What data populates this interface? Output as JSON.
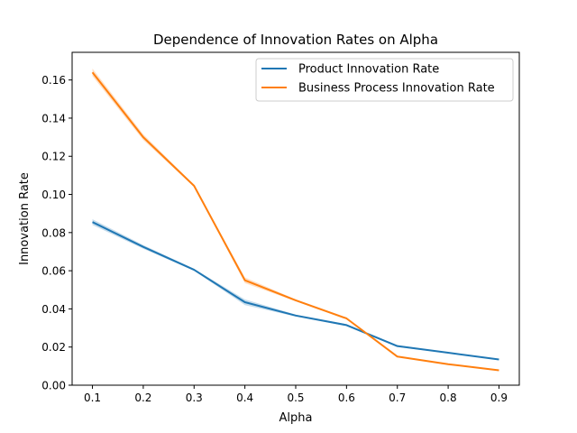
{
  "chart_data": {
    "type": "line",
    "title": "Dependence of Innovation Rates on Alpha",
    "xlabel": "Alpha",
    "ylabel": "Innovation Rate",
    "x": [
      0.1,
      0.2,
      0.3,
      0.4,
      0.5,
      0.6,
      0.7,
      0.8,
      0.9
    ],
    "xticks": [
      "0.1",
      "0.2",
      "0.3",
      "0.4",
      "0.5",
      "0.6",
      "0.7",
      "0.8",
      "0.9"
    ],
    "yticks": [
      "0.00",
      "0.02",
      "0.04",
      "0.06",
      "0.08",
      "0.10",
      "0.12",
      "0.14",
      "0.16"
    ],
    "xlim": [
      0.06,
      0.94
    ],
    "ylim": [
      0.0,
      0.1745
    ],
    "grid": false,
    "legend_position": "top-right",
    "series": [
      {
        "name": "Product Innovation Rate",
        "color": "#1f77b4",
        "values": [
          0.0855,
          0.0725,
          0.0605,
          0.0435,
          0.0365,
          0.0315,
          0.0205,
          0.017,
          0.0135
        ],
        "lower": [
          0.084,
          0.0715,
          0.06,
          0.042,
          0.036,
          0.031,
          0.02,
          0.0168,
          0.0133
        ],
        "upper": [
          0.087,
          0.0735,
          0.061,
          0.045,
          0.037,
          0.032,
          0.021,
          0.0172,
          0.0137
        ]
      },
      {
        "name": "Business Process Innovation Rate",
        "color": "#ff7f0e",
        "values": [
          0.164,
          0.13,
          0.1045,
          0.055,
          0.0445,
          0.035,
          0.015,
          0.011,
          0.0078
        ],
        "lower": [
          0.162,
          0.1285,
          0.104,
          0.0535,
          0.044,
          0.0345,
          0.0147,
          0.0108,
          0.0076
        ],
        "upper": [
          0.166,
          0.1315,
          0.105,
          0.0565,
          0.045,
          0.0355,
          0.0153,
          0.0112,
          0.008
        ]
      }
    ]
  }
}
